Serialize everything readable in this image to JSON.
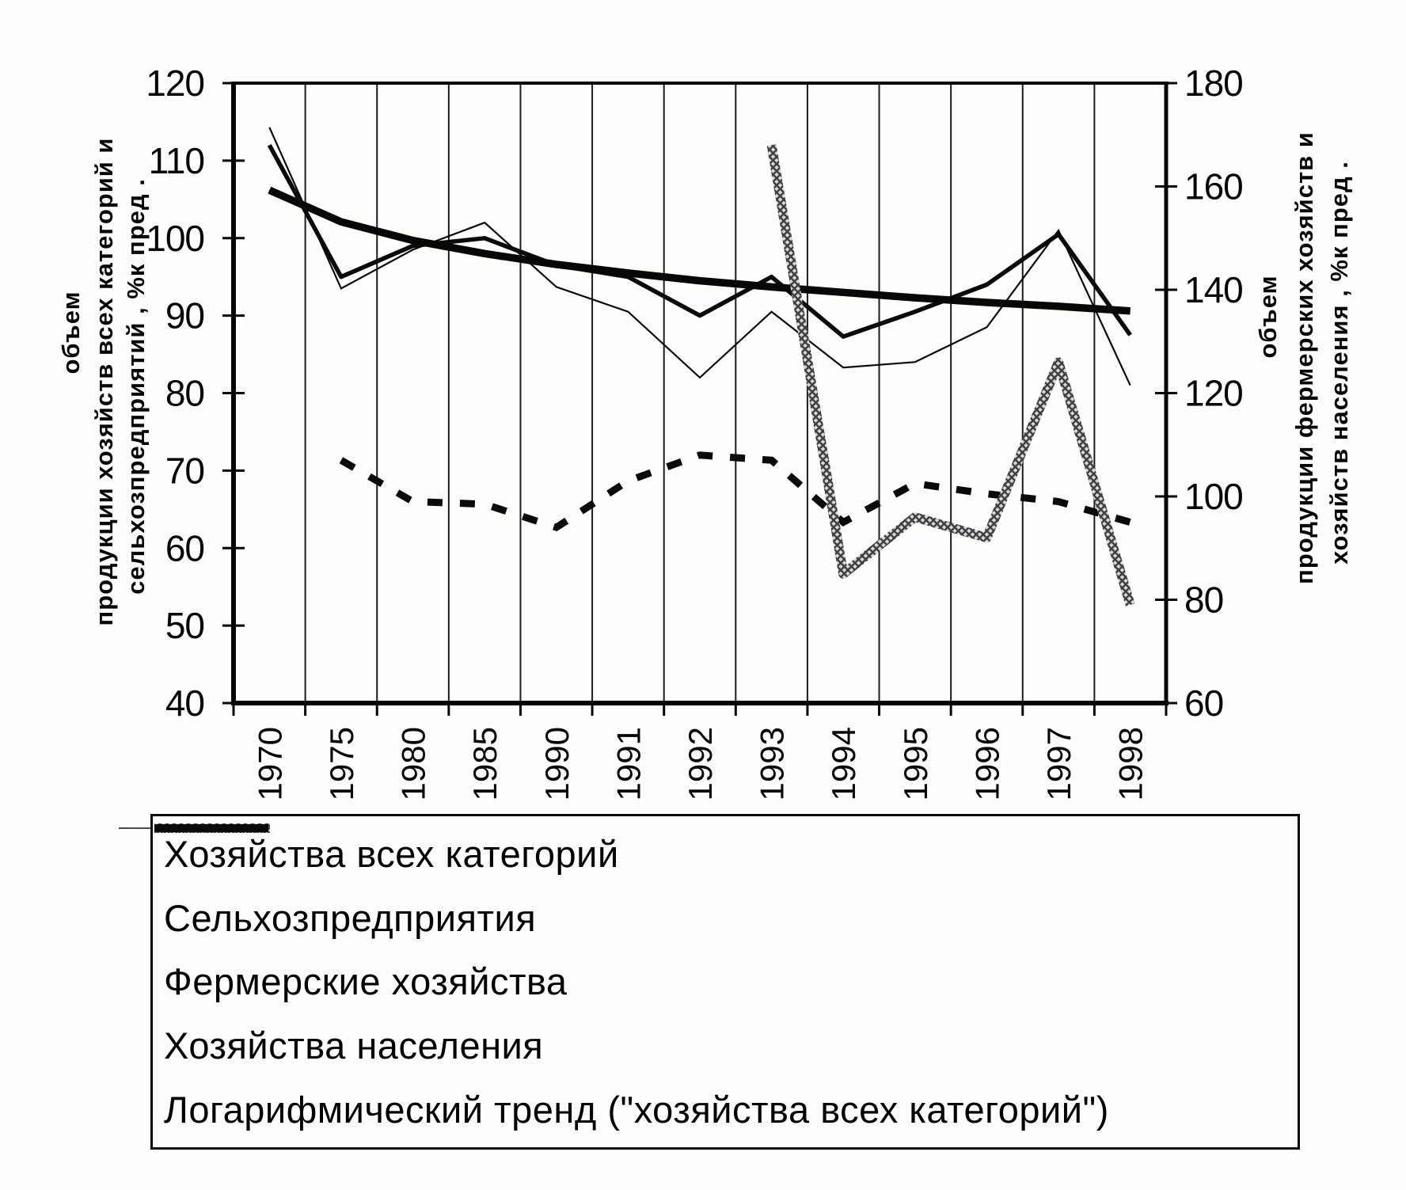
{
  "page": {
    "background": "#fdfdfc",
    "ink": "#000000",
    "gray_line": "#3f3f3f"
  },
  "chart_data": {
    "type": "line",
    "title": "",
    "categories": [
      "1970",
      "1975",
      "1980",
      "1985",
      "1990",
      "1991",
      "1992",
      "1993",
      "1994",
      "1995",
      "1996",
      "1997",
      "1998"
    ],
    "left_axis": {
      "min": 40,
      "max": 120,
      "ticks": [
        120,
        110,
        100,
        90,
        80,
        70,
        60,
        50,
        40
      ],
      "title_lines": [
        "объем",
        "продукции хозяйств всех категорий и",
        "сельхозпредприятий , %к пред ."
      ]
    },
    "right_axis": {
      "min": 60,
      "max": 180,
      "ticks": [
        180,
        160,
        140,
        120,
        100,
        80,
        60
      ],
      "title_lines": [
        "объем",
        "продукции фермерских хозяйств и",
        "хозяйств населения , %к пред ."
      ]
    },
    "grid": "vertical-only",
    "legend_position": "bottom",
    "series": [
      {
        "name": "Хозяйства всех категорий",
        "axis": "left",
        "style": "solid-medium",
        "values": [
          112,
          95,
          99,
          100,
          96.5,
          95,
          90,
          95,
          87.3,
          90.5,
          94,
          100.5,
          87.5
        ]
      },
      {
        "name": "Сельхозпредприятия",
        "axis": "left",
        "style": "solid-thin",
        "values": [
          114.3,
          93.5,
          98.5,
          102,
          93.7,
          90.5,
          82,
          90.5,
          83.3,
          84,
          88.5,
          101,
          81
        ]
      },
      {
        "name": "Фермерские хозяйства",
        "axis": "right",
        "style": "chain-thick",
        "values": [
          null,
          null,
          null,
          null,
          null,
          null,
          null,
          168,
          85,
          96,
          92,
          126,
          79
        ]
      },
      {
        "name": "Хозяйства населения",
        "axis": "right",
        "style": "dashed-thick",
        "values": [
          null,
          107,
          99,
          98.5,
          94,
          103,
          108,
          107,
          95,
          102.5,
          100.5,
          99,
          95
        ]
      },
      {
        "name": "Логарифмический тренд (\"хозяйства всех категорий\")",
        "axis": "left",
        "style": "solid-heavy",
        "values": [
          106.2,
          102.1,
          99.7,
          98,
          96.6,
          95.5,
          94.5,
          93.7,
          93,
          92.3,
          91.7,
          91.2,
          90.6
        ]
      }
    ]
  }
}
